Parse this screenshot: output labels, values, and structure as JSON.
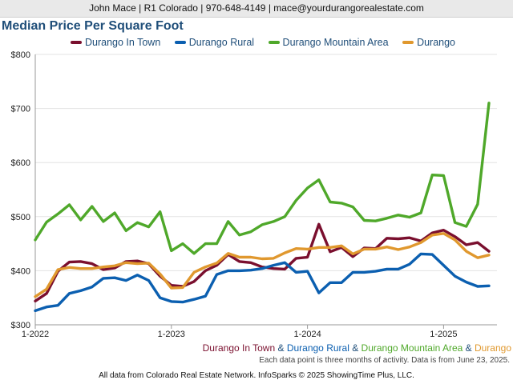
{
  "header": {
    "name": "John Mace",
    "brokerage": "R1 Colorado",
    "phone": "970-648-4149",
    "email": "mace@yourdurangorealestate.com",
    "separator": " | "
  },
  "chart_data": {
    "type": "line",
    "title": "Median Price Per Square Foot",
    "ylim": [
      300,
      800
    ],
    "yticks": [
      "$300",
      "$400",
      "$500",
      "$600",
      "$700",
      "$800"
    ],
    "ytick_values": [
      300,
      400,
      500,
      600,
      700,
      800
    ],
    "xticks": [
      "1-2022",
      "1-2023",
      "1-2024",
      "1-2025"
    ],
    "xtick_index": [
      0,
      12,
      24,
      36
    ],
    "x_start": "1-2022",
    "grid": true,
    "legend_position": "top",
    "series": [
      {
        "name": "Durango In Town",
        "color": "#7a0f2e",
        "values": [
          344,
          358,
          399,
          416,
          417,
          413,
          402,
          405,
          417,
          418,
          413,
          390,
          373,
          371,
          380,
          400,
          410,
          430,
          417,
          415,
          407,
          404,
          403,
          423,
          425,
          486,
          435,
          443,
          426,
          442,
          441,
          460,
          459,
          461,
          455,
          470,
          475,
          463,
          448,
          452,
          436
        ]
      },
      {
        "name": "Durango Rural",
        "color": "#0b5fb0",
        "values": [
          326,
          333,
          336,
          358,
          363,
          370,
          386,
          387,
          382,
          392,
          382,
          350,
          343,
          342,
          347,
          353,
          393,
          400,
          400,
          401,
          404,
          410,
          415,
          397,
          399,
          359,
          378,
          378,
          397,
          397,
          399,
          403,
          403,
          412,
          431,
          430,
          410,
          390,
          379,
          371,
          372
        ]
      },
      {
        "name": "Durango Mountain Area",
        "color": "#4fa82a",
        "values": [
          457,
          490,
          505,
          522,
          494,
          519,
          491,
          507,
          474,
          489,
          481,
          509,
          437,
          450,
          432,
          450,
          450,
          491,
          466,
          472,
          485,
          491,
          500,
          530,
          553,
          568,
          527,
          525,
          518,
          493,
          492,
          497,
          503,
          499,
          507,
          577,
          576,
          489,
          482,
          523,
          710
        ]
      },
      {
        "name": "Durango",
        "color": "#e0982e",
        "values": [
          352,
          366,
          402,
          406,
          404,
          404,
          407,
          409,
          415,
          413,
          414,
          394,
          368,
          369,
          397,
          407,
          414,
          432,
          425,
          425,
          422,
          423,
          433,
          441,
          440,
          443,
          443,
          446,
          431,
          440,
          440,
          444,
          439,
          444,
          452,
          466,
          469,
          457,
          436,
          424,
          429
        ]
      }
    ]
  },
  "footer_series": {
    "labels": [
      "Durango In Town",
      "Durango Rural",
      "Durango Mountain Area",
      "Durango"
    ],
    "joiner": " & "
  },
  "note": "Each data point is three months of activity. Data is from June 23, 2025.",
  "footer": "All data from Colorado Real Estate Network. InfoSparks © 2025 ShowingTime Plus, LLC."
}
